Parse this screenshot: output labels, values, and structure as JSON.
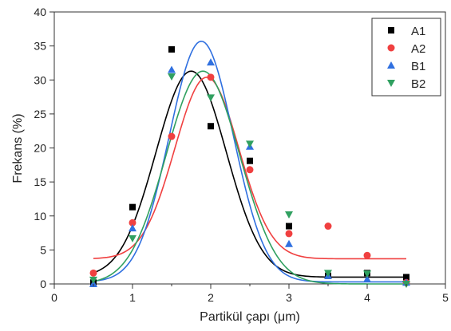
{
  "chart_data": {
    "type": "scatter",
    "title": "",
    "xlabel": "Partikül çapı (μm)",
    "ylabel": "Frekans (%)",
    "xlim": [
      0,
      5
    ],
    "ylim": [
      0,
      40
    ],
    "xticks": [
      0,
      1,
      2,
      3,
      4,
      5
    ],
    "yticks": [
      0,
      5,
      10,
      15,
      20,
      25,
      30,
      35,
      40
    ],
    "grid": false,
    "legend_position": "top-right",
    "series": [
      {
        "name": "A1",
        "marker": "square",
        "color": "#000000",
        "points": [
          [
            0.5,
            0.2
          ],
          [
            1.0,
            11.3
          ],
          [
            1.5,
            34.5
          ],
          [
            2.0,
            23.2
          ],
          [
            2.5,
            18.1
          ],
          [
            3.0,
            8.5
          ],
          [
            3.5,
            1.2
          ],
          [
            4.0,
            1.6
          ],
          [
            4.5,
            1.0
          ]
        ],
        "fit_curve": {
          "type": "gaussian",
          "y0": 1.0,
          "xc": 1.75,
          "w": 0.9,
          "peak": 30.3
        }
      },
      {
        "name": "A2",
        "marker": "circle",
        "color": "#f04040",
        "points": [
          [
            0.5,
            1.6
          ],
          [
            1.0,
            9.0
          ],
          [
            1.5,
            21.7
          ],
          [
            2.0,
            30.4
          ],
          [
            2.5,
            16.8
          ],
          [
            3.0,
            7.4
          ],
          [
            3.5,
            8.5
          ],
          [
            4.0,
            4.2
          ],
          [
            4.5,
            0.2
          ]
        ],
        "fit_curve": {
          "type": "gaussian",
          "y0": 3.7,
          "xc": 1.95,
          "w": 0.82,
          "peak": 26.7
        }
      },
      {
        "name": "B1",
        "marker": "triangle-up",
        "color": "#3070e0",
        "points": [
          [
            0.5,
            0.0
          ],
          [
            1.0,
            8.2
          ],
          [
            1.5,
            31.5
          ],
          [
            2.0,
            32.6
          ],
          [
            2.5,
            20.2
          ],
          [
            3.0,
            5.9
          ],
          [
            3.5,
            1.2
          ],
          [
            4.0,
            0.7
          ],
          [
            4.5,
            0.2
          ]
        ],
        "fit_curve": {
          "type": "gaussian",
          "y0": 0.3,
          "xc": 1.88,
          "w": 0.82,
          "peak": 35.4
        }
      },
      {
        "name": "B2",
        "marker": "triangle-down",
        "color": "#30a060",
        "points": [
          [
            0.5,
            0.6
          ],
          [
            1.0,
            6.7
          ],
          [
            1.5,
            30.5
          ],
          [
            2.0,
            27.4
          ],
          [
            2.5,
            20.6
          ],
          [
            3.0,
            10.2
          ],
          [
            3.5,
            1.6
          ],
          [
            4.0,
            1.5
          ],
          [
            4.5,
            0.0
          ]
        ],
        "fit_curve": {
          "type": "gaussian",
          "y0": 0.0,
          "xc": 1.9,
          "w": 0.94,
          "peak": 31.3
        }
      }
    ]
  }
}
